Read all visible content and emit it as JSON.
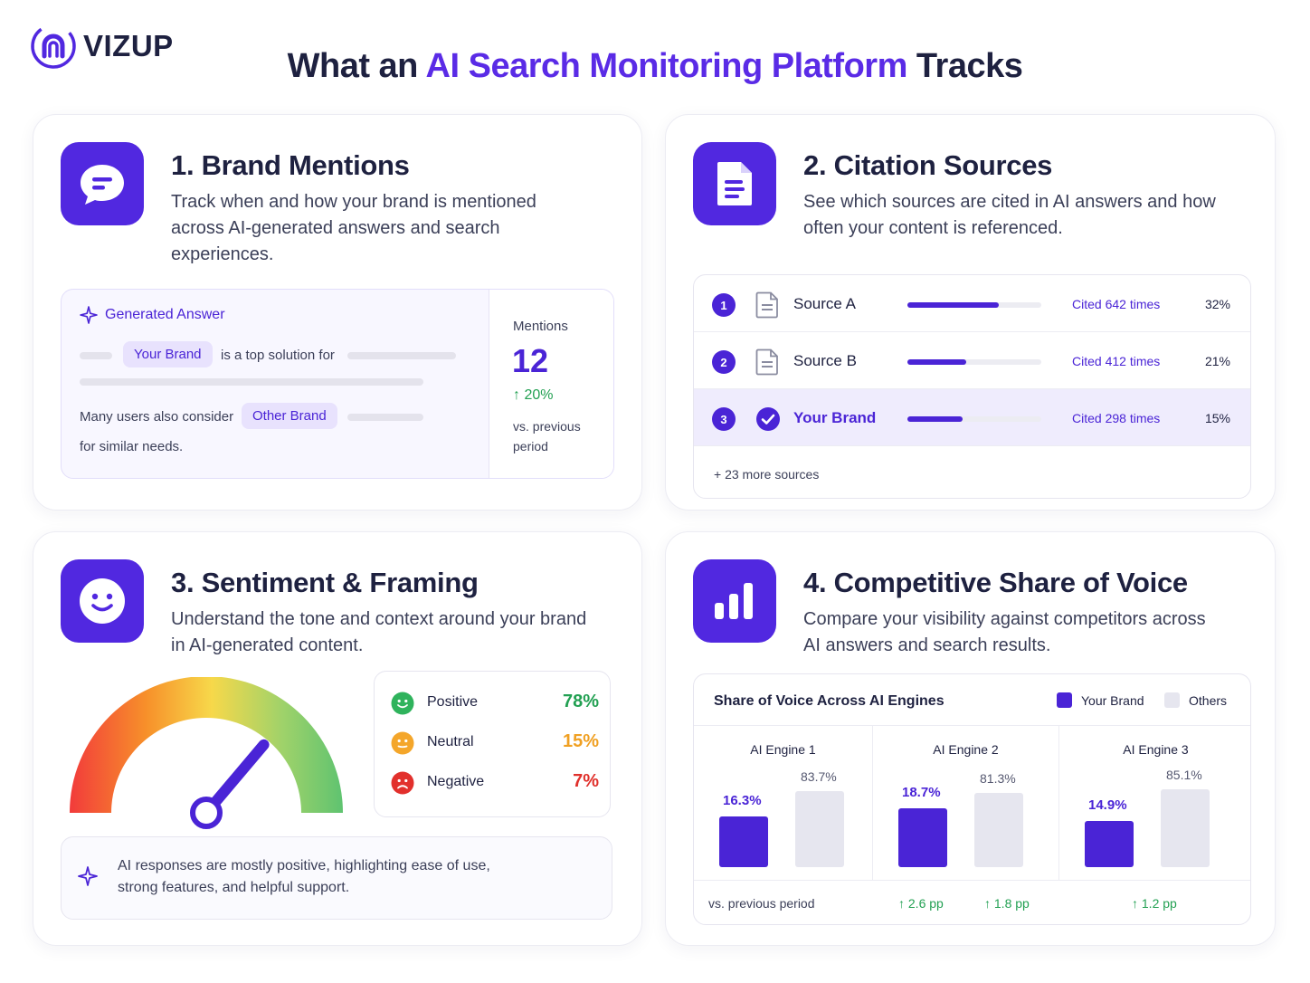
{
  "brand": {
    "name": "VIZUP"
  },
  "title": {
    "pre": "What an ",
    "accent": "AI Search Monitoring Platform",
    "post": " Tracks"
  },
  "colors": {
    "accent": "#5128e0",
    "positive": "#22a052",
    "neutral": "#f0a022",
    "negative": "#e0302b"
  },
  "cards": {
    "mentions": {
      "icon": "chat-bubble-icon",
      "title": "1. Brand Mentions",
      "desc": "Track when and how your brand is mentioned across AI-generated answers and search experiences.",
      "generated_label": "Generated Answer",
      "your_brand": "Your Brand",
      "top_solution": "is a top solution for",
      "many_users": "Many users also consider",
      "other_brand": "Other Brand",
      "similar_needs": "for similar needs.",
      "mentions_label": "Mentions",
      "mentions_value": "12",
      "change": "20%",
      "vs_previous": "vs. previous period"
    },
    "citations": {
      "icon": "document-icon",
      "title": "2. Citation Sources",
      "desc": "See which sources are cited in AI answers and how often your content is referenced.",
      "rows": [
        {
          "rank": "1",
          "name": "Source A",
          "cited": "Cited 642 times",
          "pct": "32%",
          "share": 0.68,
          "is_brand": false
        },
        {
          "rank": "2",
          "name": "Source B",
          "cited": "Cited 412 times",
          "pct": "21%",
          "share": 0.44,
          "is_brand": false
        },
        {
          "rank": "3",
          "name": "Your Brand",
          "cited": "Cited 298 times",
          "pct": "15%",
          "share": 0.41,
          "is_brand": true
        }
      ],
      "more": "+ 23 more sources"
    },
    "sentiment": {
      "icon": "smiley-icon",
      "title": "3. Sentiment & Framing",
      "desc": "Understand the tone and context around your brand in AI-generated content.",
      "gauge_level": 0.78,
      "items": [
        {
          "label": "Positive",
          "value": "78%"
        },
        {
          "label": "Neutral",
          "value": "15%"
        },
        {
          "label": "Negative",
          "value": "7%"
        }
      ],
      "summary": "AI responses are mostly positive, highlighting ease of use, strong features, and helpful support."
    },
    "sov": {
      "icon": "bar-chart-icon",
      "title": "4. Competitive Share of Voice",
      "desc": "Compare your visibility against competitors across AI answers and search results.",
      "chart_title": "Share of Voice Across AI Engines",
      "vs_label": "vs. previous period",
      "deltas": [
        "2.6 pp",
        "1.8 pp",
        "1.2 pp"
      ]
    }
  },
  "chart_data": {
    "type": "bar",
    "title": "Share of Voice Across AI Engines",
    "categories": [
      "AI Engine 1",
      "AI Engine 2",
      "AI Engine 3"
    ],
    "series": [
      {
        "name": "Your Brand",
        "values": [
          16.3,
          18.7,
          14.9
        ],
        "labels": [
          "16.3%",
          "18.7%",
          "14.9%"
        ],
        "color": "#4a24d6"
      },
      {
        "name": "Others",
        "values": [
          83.7,
          81.3,
          85.1
        ],
        "labels": [
          "83.7%",
          "81.3%",
          "85.1%"
        ],
        "color": "#e6e6ef"
      }
    ],
    "legend": "top-right"
  }
}
